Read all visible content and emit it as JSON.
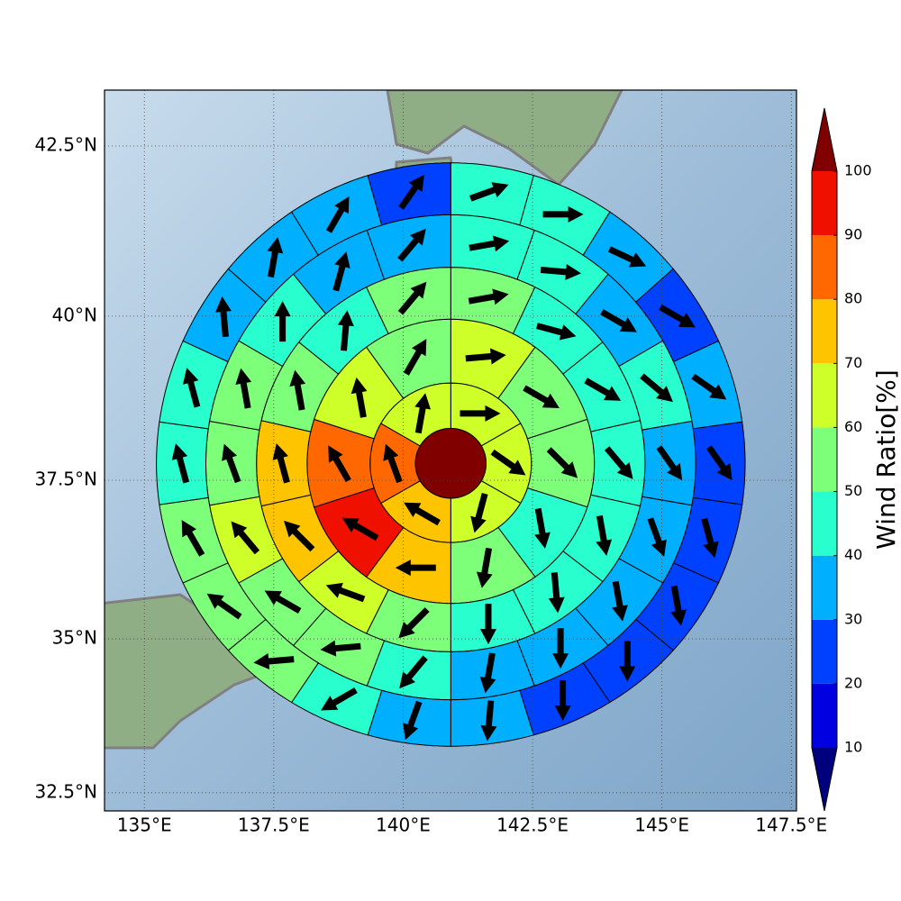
{
  "chart_data": {
    "type": "polar-grid-map",
    "projection": "mercator",
    "xlim": [
      134.23,
      147.6
    ],
    "ylim": [
      32.2,
      43.3
    ],
    "grid": true,
    "xticks": [
      {
        "value": 135,
        "label": "135°E"
      },
      {
        "value": 137.5,
        "label": "137.5°E"
      },
      {
        "value": 140,
        "label": "140°E"
      },
      {
        "value": 142.5,
        "label": "142.5°E"
      },
      {
        "value": 145,
        "label": "145°E"
      },
      {
        "value": 147.5,
        "label": "147.5°E"
      }
    ],
    "yticks": [
      {
        "value": 32.5,
        "label": "32.5°N"
      },
      {
        "value": 35,
        "label": "35°N"
      },
      {
        "value": 37.5,
        "label": "37.5°N"
      },
      {
        "value": 40,
        "label": "40°N"
      },
      {
        "value": 42.5,
        "label": "42.5°N"
      }
    ],
    "center": {
      "lon": 140.92,
      "lat": 37.76,
      "radius_km": 60,
      "value": 105
    },
    "rings": [
      {
        "inner_km": 60,
        "outer_km": 137,
        "values": [
          65,
          65,
          65,
          75,
          85,
          65
        ],
        "directions": [
          90,
          125,
          195,
          300,
          340,
          10
        ]
      },
      {
        "inner_km": 137,
        "outer_km": 244,
        "values": [
          65,
          55,
          55,
          45,
          55,
          75,
          95,
          85,
          65,
          55
        ],
        "directions": [
          85,
          120,
          135,
          170,
          190,
          270,
          300,
          330,
          350,
          30
        ]
      },
      {
        "inner_km": 244,
        "outer_km": 330,
        "values": [
          55,
          45,
          45,
          45,
          45,
          45,
          45,
          55,
          65,
          75,
          75,
          55,
          45,
          55
        ],
        "directions": [
          80,
          105,
          120,
          140,
          170,
          175,
          180,
          225,
          290,
          315,
          345,
          350,
          5,
          40
        ]
      },
      {
        "inner_km": 330,
        "outer_km": 416,
        "values": [
          45,
          45,
          35,
          45,
          35,
          35,
          35,
          35,
          35,
          45,
          55,
          55,
          65,
          55,
          55,
          45,
          35,
          35
        ],
        "directions": [
          80,
          95,
          120,
          130,
          145,
          160,
          170,
          180,
          190,
          220,
          265,
          300,
          320,
          340,
          350,
          0,
          15,
          40
        ]
      },
      {
        "inner_km": 416,
        "outer_km": 500,
        "values": [
          45,
          45,
          35,
          25,
          35,
          25,
          25,
          25,
          25,
          25,
          35,
          35,
          45,
          55,
          55,
          55,
          45,
          45,
          35,
          35,
          35,
          25
        ],
        "directions": [
          70,
          90,
          115,
          120,
          125,
          145,
          165,
          170,
          180,
          180,
          185,
          200,
          240,
          265,
          305,
          330,
          345,
          345,
          355,
          10,
          30,
          35
        ]
      }
    ],
    "colorbar": {
      "label": "Wind Ratio[%]",
      "ticks": [
        10,
        20,
        30,
        40,
        50,
        60,
        70,
        80,
        90,
        100
      ],
      "extend": "both",
      "colors": [
        "#00007f",
        "#0000e0",
        "#0040ff",
        "#00b0ff",
        "#29ffce",
        "#7dff7a",
        "#ceff29",
        "#ffc400",
        "#ff6800",
        "#f01000",
        "#800000"
      ]
    }
  }
}
